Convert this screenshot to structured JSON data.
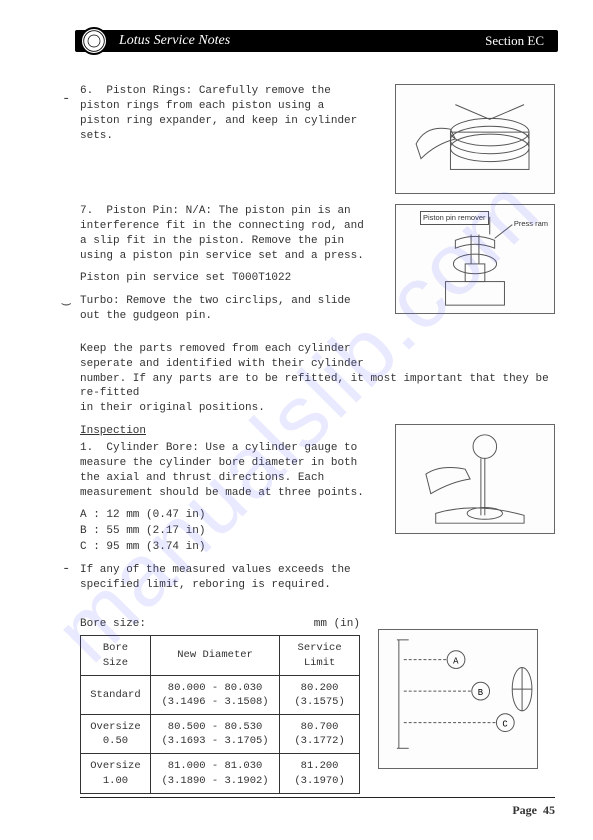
{
  "watermark": "manualslib.com",
  "header": {
    "title": "Lotus Service Notes",
    "section": "Section EC",
    "logo_text": ""
  },
  "blocks": {
    "para6": "6.  Piston Rings: Carefully remove the\npiston rings from each piston using a\npiston ring expander, and keep in cylinder\nsets.",
    "para7a": "7.  Piston Pin: N/A: The piston pin is an\ninterference fit in the connecting rod, and\na slip fit in the piston. Remove the pin\nusing a piston pin service set and a press.",
    "para7b": "Piston pin service set T000T1022",
    "para7c": "Turbo: Remove the two circlips, and slide\nout the gudgeon pin.",
    "para7d": "Keep the parts removed from each cylinder\nseperate and identified with their cylinder\nnumber. If any parts are to be refitted, it most important that they be re-fitted\nin their original positions.",
    "inspection_title": "Inspection",
    "para_insp1": "1.  Cylinder Bore: Use a cylinder gauge to\nmeasure the cylinder bore diameter in both\nthe axial and thrust directions. Each\nmeasurement should be made at three points.",
    "measures": {
      "A": "A : 12 mm (0.47 in)",
      "B": "B : 55 mm (2.17 in)",
      "C": "C : 95 mm (3.74 in)"
    },
    "para_insp2": "If any of the measured values exceeds the\nspecified limit, reboring is required.",
    "bore_label": "Bore size:",
    "bore_units": "mm (in)"
  },
  "figures": {
    "fig2_label1": "Piston pin remover",
    "fig2_label2": "Press ram",
    "fig4_labels": [
      "A",
      "B",
      "C"
    ]
  },
  "table": {
    "columns": [
      "Bore\nSize",
      "New Diameter",
      "Service\nLimit"
    ],
    "rows": [
      [
        "Standard",
        "80.000 - 80.030\n(3.1496 - 3.1508)",
        "80.200\n(3.1575)"
      ],
      [
        "Oversize\n0.50",
        "80.500 - 80.530\n(3.1693 - 3.1705)",
        "80.700\n(3.1772)"
      ],
      [
        "Oversize\n1.00",
        "81.000 - 81.030\n(3.1890 - 3.1902)",
        "81.200\n(3.1970)"
      ]
    ],
    "col_widths": [
      "70px",
      "130px",
      "80px"
    ]
  },
  "footer": {
    "page_label": "Page",
    "page_number": "45"
  },
  "colors": {
    "text": "#333333",
    "border": "#333333",
    "header_bg": "#000000",
    "watermark": "rgba(100,100,255,0.14)"
  }
}
